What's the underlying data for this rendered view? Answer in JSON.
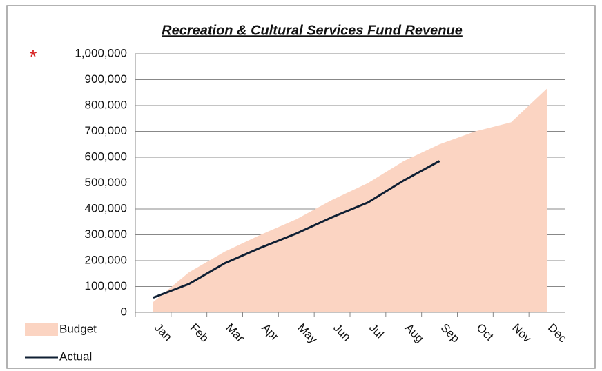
{
  "chart_data": {
    "type": "area_line",
    "title": "Recreation & Cultural Services Fund Revenue",
    "annotation": "*",
    "categories": [
      "Jan",
      "Feb",
      "Mar",
      "Apr",
      "May",
      "Jun",
      "Jul",
      "Aug",
      "Sep",
      "Oct",
      "Nov",
      "Dec"
    ],
    "series": [
      {
        "name": "Budget",
        "kind": "area",
        "color": "#fbd4c2",
        "values": [
          40000,
          155000,
          235000,
          300000,
          360000,
          435000,
          500000,
          585000,
          650000,
          700000,
          735000,
          865000
        ]
      },
      {
        "name": "Actual",
        "kind": "line",
        "color": "#0f1f33",
        "values": [
          57000,
          110000,
          190000,
          250000,
          305000,
          368000,
          425000,
          510000,
          585000,
          null,
          null,
          null
        ]
      }
    ],
    "ylim": [
      0,
      1000000
    ],
    "yticks": [
      0,
      {
        "value": 100000,
        "label": "100,000"
      },
      {
        "value": 200000,
        "label": "200,000"
      },
      {
        "value": 300000,
        "label": "300,000"
      },
      {
        "value": 400000,
        "label": "400,000"
      },
      {
        "value": 500000,
        "label": "500,000"
      },
      {
        "value": 600000,
        "label": "600,000"
      },
      {
        "value": 700000,
        "label": "700,000"
      },
      {
        "value": 800000,
        "label": "800,000"
      },
      {
        "value": 900000,
        "label": "900,000"
      },
      {
        "value": 1000000,
        "label": "1,000,000"
      }
    ],
    "grid": true,
    "legend": "bottom-left"
  }
}
